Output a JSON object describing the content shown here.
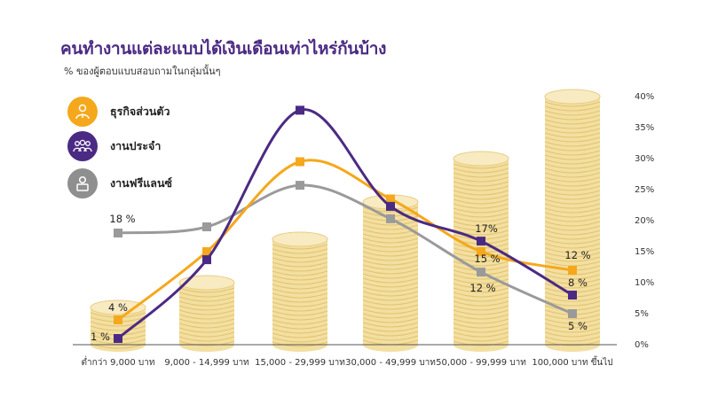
{
  "header": {
    "title": "คนทำงานแต่ละแบบได้เงินเดือนเท่าไหร่กันบ้าง",
    "subtitle": "% ของผู้ตอบแบบสอบถามในกลุ่มนั้นๆ"
  },
  "legend": [
    {
      "label": "ธุรกิจส่วนตัว",
      "icon": "business-owner-icon",
      "color": "#f5a81c"
    },
    {
      "label": "งานประจำ",
      "icon": "employees-group-icon",
      "color": "#4b2a84"
    },
    {
      "label": "งานฟรีแลนซ์",
      "icon": "freelancer-icon",
      "color": "#8f8f8f"
    }
  ],
  "chart_data": {
    "type": "line",
    "categories": [
      "ต่ำกว่า 9,000 บาท",
      "9,000 - 14,999 บาท",
      "15,000 - 29,999 บาท",
      "30,000 - 49,999 บาท",
      "50,000 - 99,999 บาท",
      "100,000 บาท ขึ้นไป"
    ],
    "ylim": [
      0,
      40
    ],
    "yticks": [
      "0%",
      "5%",
      "10%",
      "15%",
      "20%",
      "25%",
      "30%",
      "35%",
      "40%"
    ],
    "series": [
      {
        "name": "ธุรกิจส่วนตัว",
        "color": "#f5a81c",
        "values": [
          4,
          15,
          29.5,
          23.5,
          15,
          12
        ],
        "labels": [
          "4 %",
          "",
          "",
          "",
          "15 %",
          "12 %"
        ]
      },
      {
        "name": "งานประจำ",
        "color": "#4b2a84",
        "values": [
          1,
          13.7,
          37.8,
          22.3,
          16.7,
          8
        ],
        "labels": [
          "1 %",
          "",
          "",
          "",
          "17%",
          "8 %"
        ]
      },
      {
        "name": "งานฟรีแลนซ์",
        "color": "#9a9a9a",
        "values": [
          18,
          19,
          25.7,
          20.3,
          11.7,
          5
        ],
        "labels": [
          "18 %",
          "",
          "",
          "",
          "12 %",
          "5 %"
        ]
      }
    ],
    "background_columns": [
      6,
      10,
      17,
      23,
      30,
      40
    ]
  }
}
